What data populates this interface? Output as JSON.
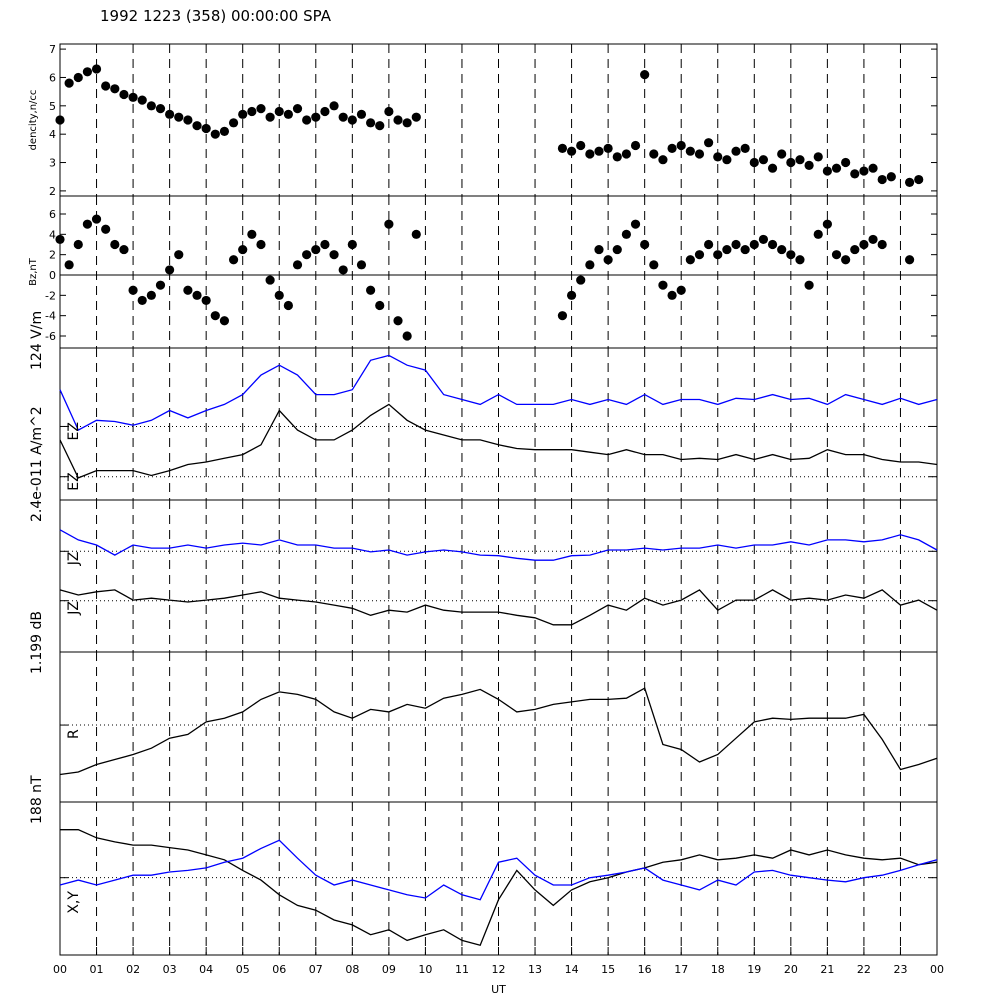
{
  "chart_data": [
    {
      "type": "scatter",
      "title": "1992 1223 (358) 00:00:00 SPA",
      "ylabel": "dencity,n/cc",
      "color": "#000000",
      "xlim": [
        0,
        24
      ],
      "ylim": [
        1.82,
        7.18
      ],
      "yticks": [
        2,
        3,
        4,
        5,
        6,
        7
      ],
      "x": [
        0,
        0.25,
        0.5,
        0.75,
        1,
        1.25,
        1.5,
        1.75,
        2,
        2.25,
        2.5,
        2.75,
        3,
        3.25,
        3.5,
        3.75,
        4,
        4.25,
        4.5,
        4.75,
        5,
        5.25,
        5.5,
        5.75,
        6,
        6.25,
        6.5,
        6.75,
        7,
        7.25,
        7.5,
        7.75,
        8,
        8.25,
        8.5,
        8.75,
        9,
        9.25,
        9.5,
        9.75,
        13.75,
        14,
        14.25,
        14.5,
        14.75,
        15,
        15.25,
        15.5,
        15.75,
        16,
        16.25,
        16.5,
        16.75,
        17,
        17.25,
        17.5,
        17.75,
        18,
        18.25,
        18.5,
        18.75,
        19,
        19.25,
        19.5,
        19.75,
        20,
        20.25,
        20.5,
        20.75,
        21,
        21.25,
        21.5,
        21.75,
        22,
        22.25,
        22.5,
        22.75,
        23.25,
        23.5
      ],
      "values": [
        4.5,
        5.8,
        6.0,
        6.2,
        6.3,
        5.7,
        5.6,
        5.4,
        5.3,
        5.2,
        5.0,
        4.9,
        4.7,
        4.6,
        4.5,
        4.3,
        4.2,
        4.0,
        4.1,
        4.4,
        4.7,
        4.8,
        4.9,
        4.6,
        4.8,
        4.7,
        4.9,
        4.5,
        4.6,
        4.8,
        5.0,
        4.6,
        4.5,
        4.7,
        4.4,
        4.3,
        4.8,
        4.5,
        4.4,
        4.6,
        3.5,
        3.4,
        3.6,
        3.3,
        3.4,
        3.5,
        3.2,
        3.3,
        3.6,
        6.1,
        3.3,
        3.1,
        3.5,
        3.6,
        3.4,
        3.3,
        3.7,
        3.2,
        3.1,
        3.4,
        3.5,
        3.0,
        3.1,
        2.8,
        3.3,
        3.0,
        3.1,
        2.9,
        3.2,
        2.7,
        2.8,
        3.0,
        2.6,
        2.7,
        2.8,
        2.4,
        2.5,
        2.3,
        2.4
      ]
    },
    {
      "type": "scatter",
      "ylabel": "Bz,nT",
      "color": "#000000",
      "zero_line": true,
      "xlim": [
        0,
        24
      ],
      "ylim": [
        -7.18,
        7.77
      ],
      "yticks": [
        -6,
        -4,
        -2,
        0,
        2,
        4,
        6
      ],
      "x": [
        0,
        0.25,
        0.5,
        0.75,
        1,
        1.25,
        1.5,
        1.75,
        2,
        2.25,
        2.5,
        2.75,
        3,
        3.25,
        3.5,
        3.75,
        4,
        4.25,
        4.5,
        4.75,
        5,
        5.25,
        5.5,
        5.75,
        6,
        6.25,
        6.5,
        6.75,
        7,
        7.25,
        7.5,
        7.75,
        8,
        8.25,
        8.5,
        8.75,
        9,
        9.25,
        9.5,
        9.75,
        13.75,
        14,
        14.25,
        14.5,
        14.75,
        15,
        15.25,
        15.5,
        15.75,
        16,
        16.25,
        16.5,
        16.75,
        17,
        17.25,
        17.5,
        17.75,
        18,
        18.25,
        18.5,
        18.75,
        19,
        19.25,
        19.5,
        19.75,
        20,
        20.25,
        20.5,
        20.75,
        21,
        21.25,
        21.5,
        21.75,
        22,
        22.25,
        22.5,
        23.25
      ],
      "values": [
        3.5,
        1.0,
        3.0,
        5.0,
        5.5,
        4.5,
        3.0,
        2.5,
        -1.5,
        -2.5,
        -2.0,
        -1.0,
        0.5,
        2.0,
        -1.5,
        -2.0,
        -2.5,
        -4.0,
        -4.5,
        1.5,
        2.5,
        4.0,
        3.0,
        -0.5,
        -2.0,
        -3.0,
        1.0,
        2.0,
        2.5,
        3.0,
        2.0,
        0.5,
        3.0,
        1.0,
        -1.5,
        -3.0,
        5.0,
        -4.5,
        -6.0,
        4.0,
        -4.0,
        -2.0,
        -0.5,
        1.0,
        2.5,
        1.5,
        2.5,
        4.0,
        5.0,
        3.0,
        1.0,
        -1.0,
        -2.0,
        -1.5,
        1.5,
        2.0,
        3.0,
        2.0,
        2.5,
        3.0,
        2.5,
        3.0,
        3.5,
        3.0,
        2.5,
        2.0,
        1.5,
        -1.0,
        4.0,
        5.0,
        2.0,
        1.5,
        2.5,
        3.0,
        3.5,
        3.0,
        1.5
      ]
    },
    {
      "type": "line",
      "scale_label": "124 V/m",
      "xlim": [
        0,
        24
      ],
      "ylim": [
        0,
        124
      ],
      "ref_lines": [
        60,
        19
      ],
      "x": [
        0,
        0.5,
        1,
        1.5,
        2,
        2.5,
        3,
        3.5,
        4,
        4.5,
        5,
        5.5,
        6,
        6.5,
        7,
        7.5,
        8,
        8.5,
        9,
        9.5,
        10,
        10.5,
        11,
        11.5,
        12,
        12.5,
        13,
        13.5,
        14,
        14.5,
        15,
        15.5,
        16,
        16.5,
        17,
        17.5,
        18,
        18.5,
        19,
        19.5,
        20,
        20.5,
        21,
        21.5,
        22,
        22.5,
        23,
        23.5,
        24
      ],
      "series": [
        {
          "name": "EZ",
          "color": "#0000ff",
          "values": [
            90,
            57,
            65,
            64,
            61,
            65,
            73,
            67,
            73,
            78,
            86,
            102,
            110,
            102,
            86,
            86,
            90,
            114,
            118,
            110,
            106,
            86,
            82,
            78,
            86,
            78,
            78,
            78,
            82,
            78,
            82,
            78,
            86,
            78,
            82,
            82,
            78,
            83,
            82,
            86,
            82,
            83,
            78,
            86,
            82,
            78,
            83,
            78,
            82
          ]
        },
        {
          "name": "EZ",
          "color": "#000000",
          "values": [
            49,
            18,
            24,
            24,
            24,
            20,
            24,
            29,
            31,
            34,
            37,
            45,
            73,
            57,
            49,
            49,
            57,
            69,
            78,
            65,
            57,
            53,
            49,
            49,
            45,
            42,
            41,
            41,
            41,
            39,
            37,
            41,
            37,
            37,
            33,
            34,
            33,
            37,
            33,
            37,
            33,
            34,
            41,
            37,
            37,
            33,
            31,
            31,
            29
          ]
        }
      ]
    },
    {
      "type": "line",
      "scale_label": "2.4e-011 A/m^2",
      "xlim": [
        0,
        24
      ],
      "ylim": [
        0,
        2.4e-11
      ],
      "ref_lines": [
        1.59e-11,
        8.1e-12
      ],
      "x": [
        0,
        0.5,
        1,
        1.5,
        2,
        2.5,
        3,
        3.5,
        4,
        4.5,
        5,
        5.5,
        6,
        6.5,
        7,
        7.5,
        8,
        8.5,
        9,
        9.5,
        10,
        10.5,
        11,
        11.5,
        12,
        12.5,
        13,
        13.5,
        14,
        14.5,
        15,
        15.5,
        16,
        16.5,
        17,
        17.5,
        18,
        18.5,
        19,
        19.5,
        20,
        20.5,
        21,
        21.5,
        22,
        22.5,
        23,
        23.5,
        24
      ],
      "series": [
        {
          "name": "JZ",
          "color": "#0000ff",
          "values": [
            1.93e-11,
            1.77e-11,
            1.69e-11,
            1.53e-11,
            1.69e-11,
            1.64e-11,
            1.64e-11,
            1.69e-11,
            1.64e-11,
            1.69e-11,
            1.72e-11,
            1.69e-11,
            1.77e-11,
            1.69e-11,
            1.69e-11,
            1.64e-11,
            1.64e-11,
            1.58e-11,
            1.61e-11,
            1.53e-11,
            1.58e-11,
            1.61e-11,
            1.58e-11,
            1.53e-11,
            1.52e-11,
            1.48e-11,
            1.45e-11,
            1.45e-11,
            1.52e-11,
            1.53e-11,
            1.61e-11,
            1.61e-11,
            1.64e-11,
            1.61e-11,
            1.64e-11,
            1.64e-11,
            1.69e-11,
            1.64e-11,
            1.69e-11,
            1.69e-11,
            1.74e-11,
            1.69e-11,
            1.77e-11,
            1.77e-11,
            1.74e-11,
            1.77e-11,
            1.85e-11,
            1.77e-11,
            1.61e-11
          ]
        },
        {
          "name": "JZ",
          "color": "#000000",
          "values": [
            9.8e-12,
            9e-12,
            9.5e-12,
            9.8e-12,
            8.2e-12,
            8.5e-12,
            8.2e-12,
            7.9e-12,
            8.2e-12,
            8.5e-12,
            9e-12,
            9.5e-12,
            8.5e-12,
            8.2e-12,
            7.9e-12,
            7.4e-12,
            6.9e-12,
            5.8e-12,
            6.6e-12,
            6.3e-12,
            7.4e-12,
            6.6e-12,
            6.3e-12,
            6.3e-12,
            6.3e-12,
            5.8e-12,
            5.4e-12,
            4.3e-12,
            4.3e-12,
            5.8e-12,
            7.4e-12,
            6.6e-12,
            8.5e-12,
            7.4e-12,
            8.2e-12,
            9.8e-12,
            6.6e-12,
            8.2e-12,
            8.2e-12,
            9.8e-12,
            8.2e-12,
            8.5e-12,
            8.2e-12,
            9e-12,
            8.5e-12,
            9.8e-12,
            7.4e-12,
            8.2e-12,
            6.6e-12
          ]
        }
      ]
    },
    {
      "type": "line",
      "scale_label": "1.199 dB",
      "xlim": [
        0,
        24
      ],
      "ylim": [
        0,
        1.199
      ],
      "ref_lines": [
        0.615
      ],
      "x": [
        0,
        0.5,
        1,
        1.5,
        2,
        2.5,
        3,
        3.5,
        4,
        4.5,
        5,
        5.5,
        6,
        6.5,
        7,
        7.5,
        8,
        8.5,
        9,
        9.5,
        10,
        10.5,
        11,
        11.5,
        12,
        12.5,
        13,
        13.5,
        14,
        14.5,
        15,
        15.5,
        16,
        16.5,
        17,
        17.5,
        18,
        18.5,
        19,
        19.5,
        20,
        20.5,
        21,
        21.5,
        22,
        22.5,
        23,
        23.5,
        24
      ],
      "series": [
        {
          "name": "R",
          "color": "#000000",
          "values": [
            0.22,
            0.24,
            0.3,
            0.34,
            0.38,
            0.43,
            0.51,
            0.54,
            0.64,
            0.67,
            0.72,
            0.82,
            0.88,
            0.86,
            0.82,
            0.72,
            0.67,
            0.74,
            0.72,
            0.78,
            0.75,
            0.83,
            0.86,
            0.9,
            0.82,
            0.72,
            0.74,
            0.78,
            0.8,
            0.82,
            0.82,
            0.83,
            0.91,
            0.46,
            0.42,
            0.32,
            0.38,
            0.51,
            0.64,
            0.67,
            0.66,
            0.67,
            0.67,
            0.67,
            0.7,
            0.5,
            0.26,
            0.3,
            0.35
          ]
        }
      ]
    },
    {
      "type": "line",
      "scale_label": "188 nT",
      "label": "X,Y",
      "xlabel": "UT",
      "xlim": [
        0,
        24
      ],
      "ylim": [
        0,
        188
      ],
      "ref_lines": [
        95
      ],
      "xticks": [
        {
          "value": 0,
          "label": "00"
        },
        {
          "value": 1,
          "label": "01"
        },
        {
          "value": 2,
          "label": "02"
        },
        {
          "value": 3,
          "label": "03"
        },
        {
          "value": 4,
          "label": "04"
        },
        {
          "value": 5,
          "label": "05"
        },
        {
          "value": 6,
          "label": "06"
        },
        {
          "value": 7,
          "label": "07"
        },
        {
          "value": 8,
          "label": "08"
        },
        {
          "value": 9,
          "label": "09"
        },
        10,
        11,
        12,
        13,
        14,
        15,
        16,
        17,
        18,
        19,
        20,
        21,
        22,
        23,
        {
          "value": 24,
          "label": "00"
        }
      ],
      "x": [
        0,
        0.5,
        1,
        1.5,
        2,
        2.5,
        3,
        3.5,
        4,
        4.5,
        5,
        5.5,
        6,
        6.5,
        7,
        7.5,
        8,
        8.5,
        9,
        9.5,
        10,
        10.5,
        11,
        11.5,
        12,
        12.5,
        13,
        13.5,
        14,
        14.5,
        15,
        15.5,
        16,
        16.5,
        17,
        17.5,
        18,
        18.5,
        19,
        19.5,
        20,
        20.5,
        21,
        21.5,
        22,
        22.5,
        23,
        23.5,
        24
      ],
      "series": [
        {
          "color": "#000000",
          "values": [
            154,
            154,
            144,
            139,
            135,
            135,
            132,
            129,
            123,
            117,
            104,
            92,
            74,
            61,
            55,
            43,
            37,
            25,
            31,
            18,
            25,
            31,
            18,
            12,
            68,
            104,
            80,
            61,
            80,
            90,
            95,
            102,
            107,
            114,
            117,
            123,
            117,
            119,
            123,
            119,
            129,
            123,
            129,
            123,
            119,
            117,
            119,
            111,
            114
          ]
        },
        {
          "color": "#0000ff",
          "values": [
            86,
            92,
            86,
            92,
            98,
            98,
            102,
            104,
            107,
            114,
            119,
            131,
            141,
            119,
            98,
            86,
            92,
            86,
            80,
            74,
            70,
            86,
            74,
            68,
            114,
            119,
            98,
            86,
            86,
            95,
            98,
            102,
            107,
            92,
            86,
            80,
            92,
            86,
            102,
            104,
            98,
            95,
            92,
            90,
            95,
            98,
            104,
            111,
            117
          ]
        }
      ]
    }
  ]
}
